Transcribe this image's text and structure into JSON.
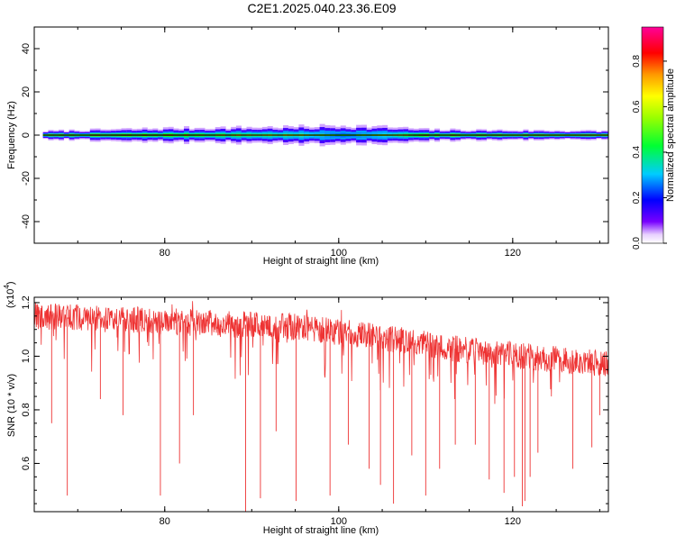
{
  "title": "C2E1.2025.040.23.36.E09",
  "chart_data": [
    {
      "type": "heatmap",
      "name": "spectrogram",
      "xlabel": "Height of straight line (km)",
      "ylabel": "Frequency (Hz)",
      "xlim": [
        65,
        131
      ],
      "ylim": [
        -50,
        50
      ],
      "x_ticks": [
        80,
        100,
        120
      ],
      "y_ticks": [
        -40,
        -20,
        0,
        20,
        40
      ],
      "x_tick_labels": [
        "80",
        "100",
        "120"
      ],
      "y_tick_labels": [
        "-40",
        "-20",
        "0",
        "20",
        "40"
      ],
      "colorbar": {
        "label": "Normalized spectral amplitude",
        "range": [
          0,
          0.95
        ],
        "ticks": [
          0,
          0.2,
          0.4,
          0.6,
          0.8
        ],
        "tick_labels": [
          "0.0",
          "0.2",
          "0.4",
          "0.6",
          "0.8"
        ]
      },
      "band": {
        "center_frequency_hz": 0,
        "x_start": 66,
        "profile": [
          {
            "x": 66,
            "halfwidth_hz": 1.5,
            "peak": 0.9
          },
          {
            "x": 80,
            "halfwidth_hz": 2.5,
            "peak": 0.8
          },
          {
            "x": 95,
            "halfwidth_hz": 3.0,
            "peak": 0.6
          },
          {
            "x": 100,
            "halfwidth_hz": 3.5,
            "peak": 0.45
          },
          {
            "x": 105,
            "halfwidth_hz": 3.0,
            "peak": 0.55
          },
          {
            "x": 110,
            "halfwidth_hz": 2.0,
            "peak": 0.85
          },
          {
            "x": 131,
            "halfwidth_hz": 1.5,
            "peak": 0.95
          }
        ]
      }
    },
    {
      "type": "line",
      "name": "snr",
      "xlabel": "Height of straight line (km)",
      "ylabel": "SNR (10 * v/v)",
      "y_multiplier": "(x10",
      "y_multiplier_exp": "4",
      "y_multiplier_close": ")",
      "xlim": [
        65,
        131
      ],
      "ylim": [
        0.42,
        1.22
      ],
      "x_ticks": [
        80,
        100,
        120
      ],
      "y_ticks": [
        0.6,
        0.8,
        1.0,
        1.2
      ],
      "x_tick_labels": [
        "80",
        "100",
        "120"
      ],
      "y_tick_labels": [
        "0.6",
        "0.8",
        "1.0",
        "1.2"
      ],
      "color": "#ee3333",
      "baseline_trend": [
        {
          "x": 65,
          "y": 1.15
        },
        {
          "x": 80,
          "y": 1.13
        },
        {
          "x": 95,
          "y": 1.11
        },
        {
          "x": 105,
          "y": 1.07
        },
        {
          "x": 115,
          "y": 1.02
        },
        {
          "x": 131,
          "y": 0.97
        }
      ],
      "deep_dips": [
        {
          "x": 67.0,
          "y": 0.75
        },
        {
          "x": 68.8,
          "y": 0.48
        },
        {
          "x": 72.6,
          "y": 0.84
        },
        {
          "x": 75.2,
          "y": 0.78
        },
        {
          "x": 79.5,
          "y": 0.48
        },
        {
          "x": 81.7,
          "y": 0.6
        },
        {
          "x": 83.3,
          "y": 0.78
        },
        {
          "x": 89.3,
          "y": 0.42
        },
        {
          "x": 91.0,
          "y": 0.47
        },
        {
          "x": 92.8,
          "y": 0.72
        },
        {
          "x": 95.1,
          "y": 0.46
        },
        {
          "x": 99.0,
          "y": 0.48
        },
        {
          "x": 101.1,
          "y": 0.67
        },
        {
          "x": 103.5,
          "y": 0.58
        },
        {
          "x": 104.8,
          "y": 0.52
        },
        {
          "x": 106.3,
          "y": 0.45
        },
        {
          "x": 108.4,
          "y": 0.63
        },
        {
          "x": 110.0,
          "y": 0.48
        },
        {
          "x": 111.6,
          "y": 0.58
        },
        {
          "x": 113.4,
          "y": 0.67
        },
        {
          "x": 115.7,
          "y": 0.67
        },
        {
          "x": 117.3,
          "y": 0.54
        },
        {
          "x": 119.0,
          "y": 0.49
        },
        {
          "x": 120.2,
          "y": 0.55
        },
        {
          "x": 121.1,
          "y": 0.44
        },
        {
          "x": 121.4,
          "y": 0.46
        },
        {
          "x": 122.0,
          "y": 0.55
        },
        {
          "x": 122.9,
          "y": 0.64
        },
        {
          "x": 126.9,
          "y": 0.58
        },
        {
          "x": 129.1,
          "y": 0.66
        },
        {
          "x": 130.0,
          "y": 0.78
        }
      ]
    }
  ]
}
